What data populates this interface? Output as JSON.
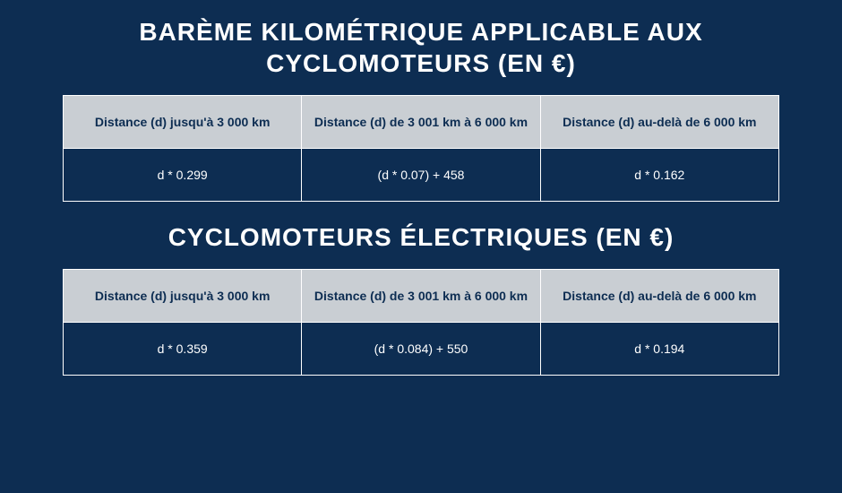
{
  "colors": {
    "background": "#0d2d52",
    "header_bg": "#c9ced3",
    "header_text": "#0d2d52",
    "cell_bg": "#0d2d52",
    "cell_text": "#ffffff",
    "border": "#ffffff",
    "title_text": "#ffffff"
  },
  "typography": {
    "title_fontsize_pt": 21,
    "title_weight": 800,
    "cell_fontsize_pt": 10.5,
    "header_weight": 700
  },
  "section1": {
    "title": "BARÈME KILOMÉTRIQUE APPLICABLE AUX CYCLOMOTEURS (EN €)",
    "table": {
      "type": "table",
      "columns": [
        "Distance (d) jusqu'à 3 000 km",
        "Distance (d) de 3 001 km à 6 000 km",
        "Distance (d) au-delà de 6 000 km"
      ],
      "rows": [
        [
          "d * 0.299",
          "(d * 0.07) + 458",
          "d * 0.162"
        ]
      ]
    }
  },
  "section2": {
    "title": "CYCLOMOTEURS ÉLECTRIQUES (EN €)",
    "table": {
      "type": "table",
      "columns": [
        "Distance (d) jusqu'à 3 000 km",
        "Distance (d) de 3 001 km à 6 000 km",
        "Distance (d) au-delà de 6 000 km"
      ],
      "rows": [
        [
          "d * 0.359",
          "(d * 0.084) + 550",
          "d * 0.194"
        ]
      ]
    }
  }
}
